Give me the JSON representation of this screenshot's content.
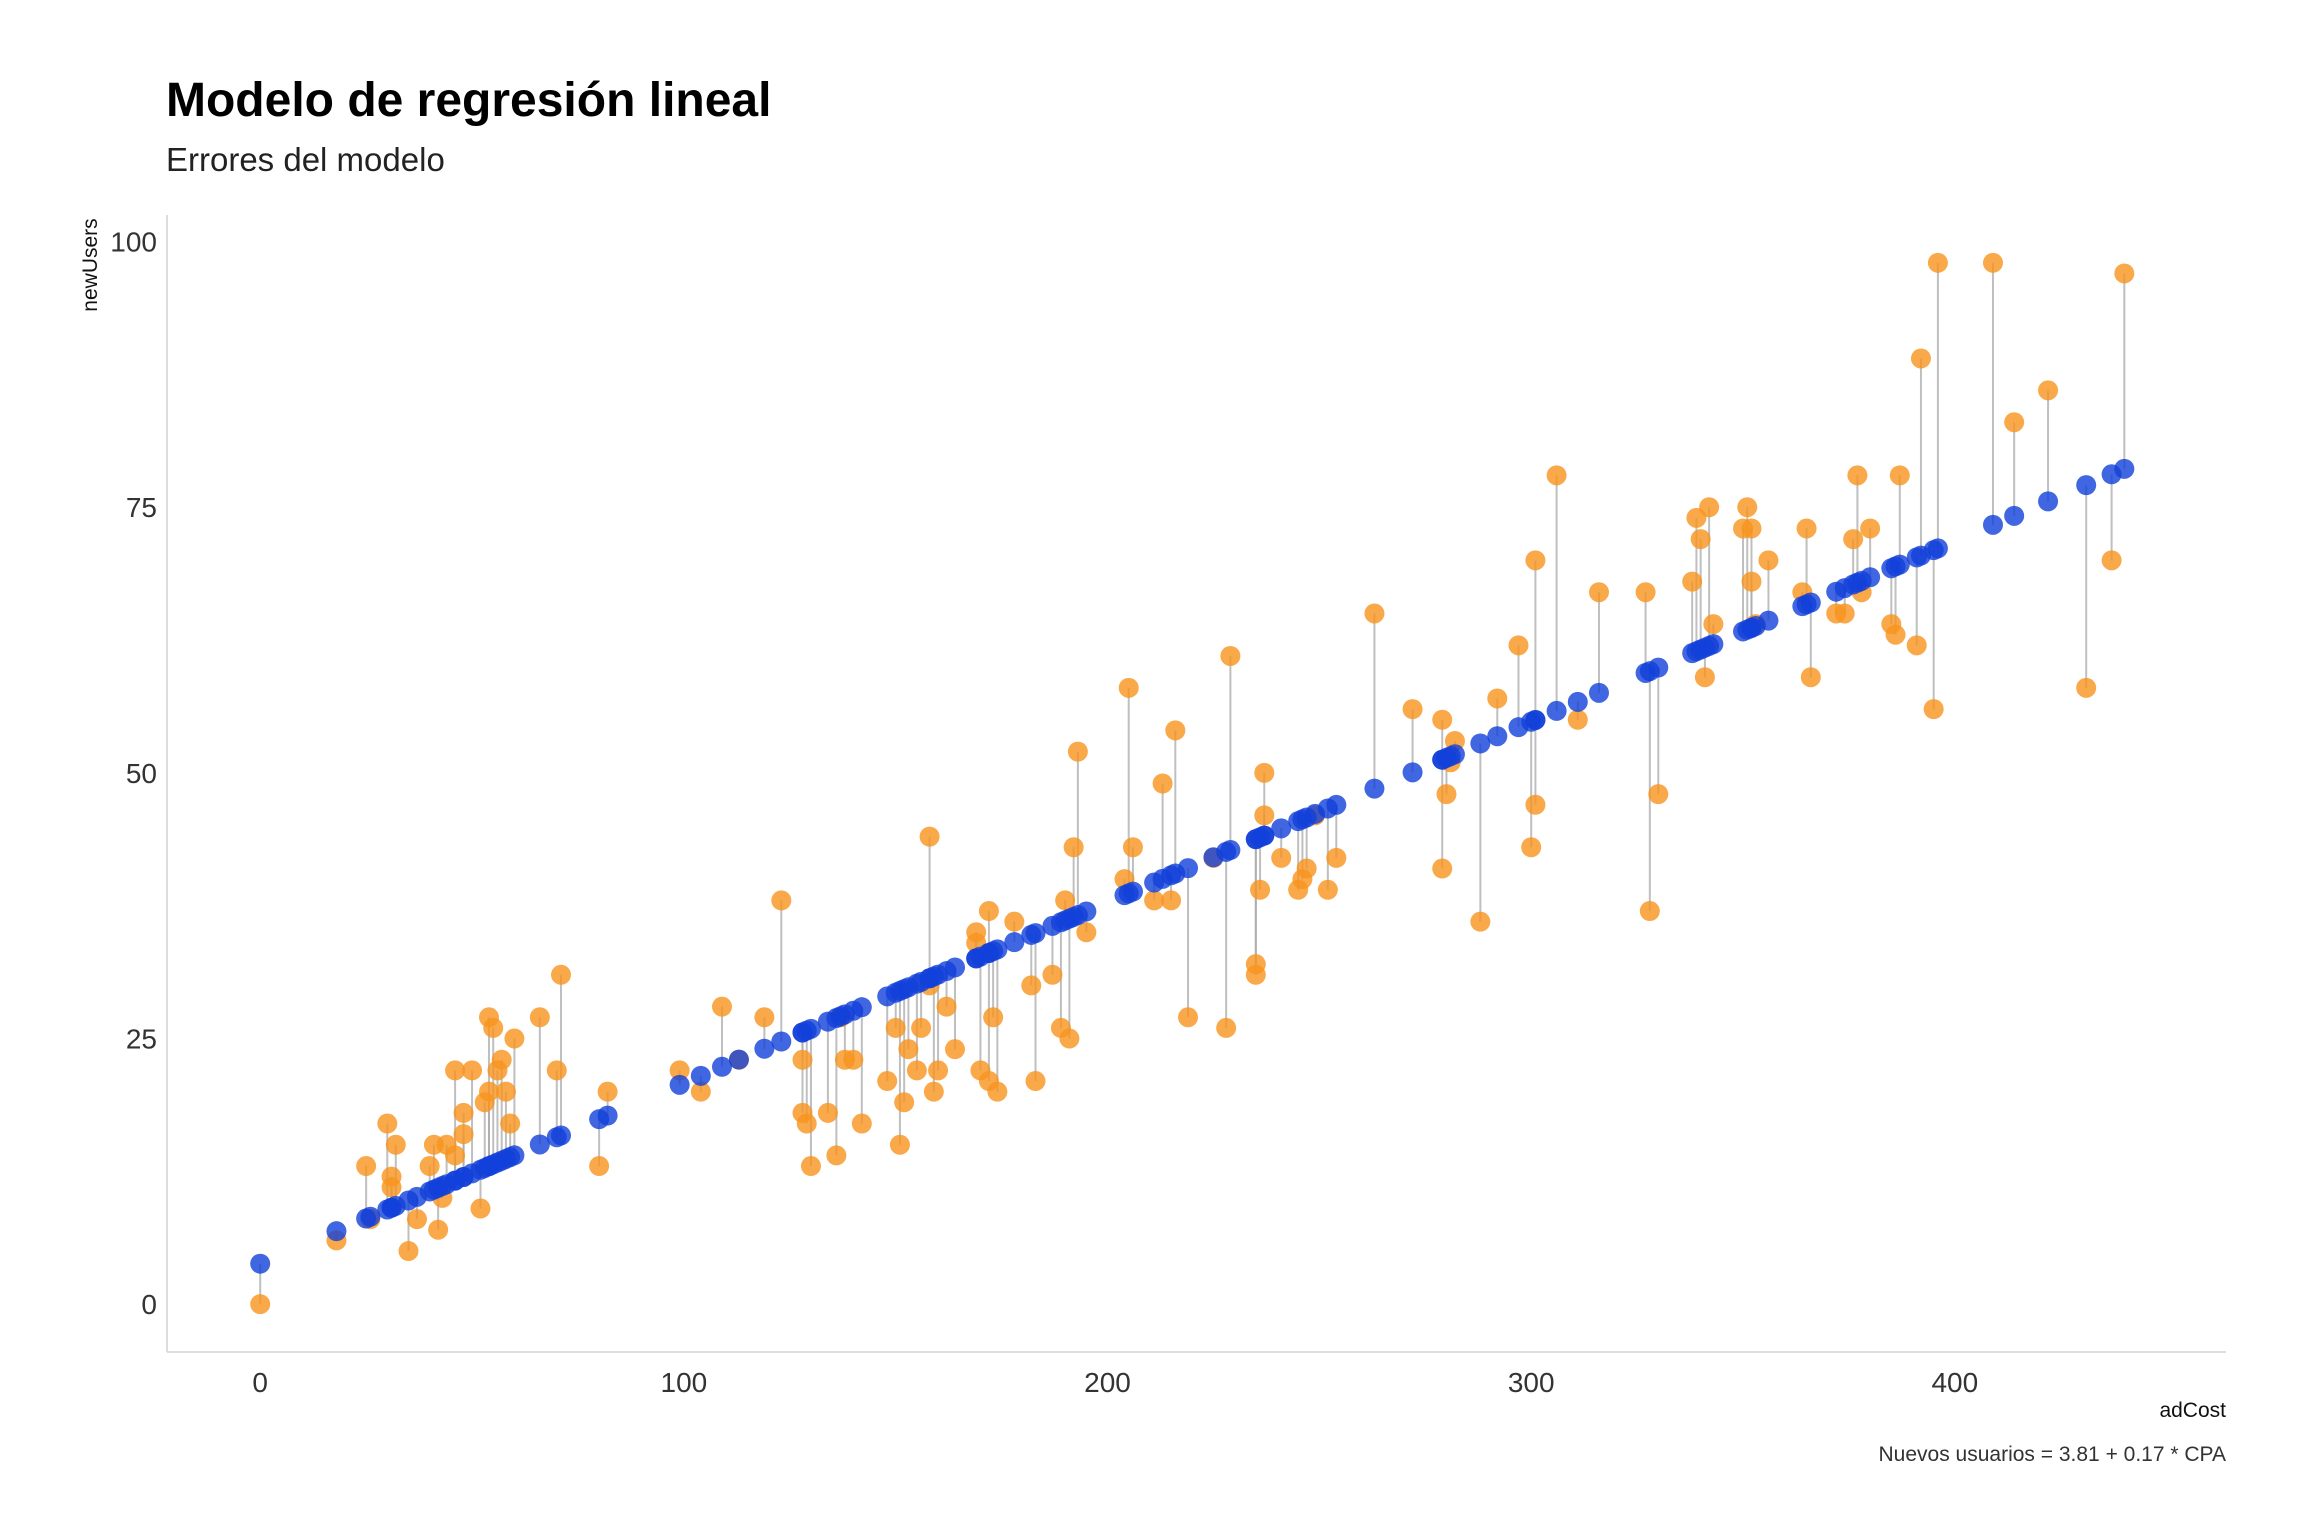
{
  "chart_data": {
    "type": "scatter",
    "title": "Modelo de regresión lineal",
    "subtitle": "Errores del modelo",
    "xlabel": "adCost",
    "ylabel": "newUsers",
    "caption": "Nuevos usuarios = 3.81 + 0.17 * CPA",
    "xlim": [
      -22,
      464
    ],
    "ylim": [
      -4.5,
      102.5
    ],
    "x_ticks": [
      0,
      100,
      200,
      300,
      400
    ],
    "y_ticks": [
      0,
      25,
      50,
      75,
      100
    ],
    "grid": false,
    "model": {
      "intercept": 3.81,
      "slope": 0.17
    },
    "colors": {
      "observed": "#f7941d",
      "fitted": "#1240d9",
      "residual": "#aaaaaa"
    },
    "series": [
      {
        "role": "observed",
        "x": [
          0,
          18,
          25,
          26,
          30,
          31,
          31,
          32,
          35,
          37,
          40,
          41,
          42,
          43,
          44,
          46,
          46,
          48,
          48,
          50,
          52,
          53,
          54,
          54,
          55,
          56,
          57,
          58,
          59,
          60,
          66,
          70,
          71,
          80,
          82,
          99,
          104,
          109,
          113,
          119,
          123,
          128,
          128,
          129,
          130,
          134,
          136,
          137,
          138,
          140,
          142,
          148,
          150,
          151,
          152,
          153,
          155,
          156,
          158,
          158,
          159,
          160,
          162,
          164,
          169,
          169,
          170,
          172,
          172,
          173,
          174,
          178,
          182,
          183,
          187,
          189,
          190,
          191,
          192,
          193,
          195,
          204,
          205,
          206,
          211,
          213,
          215,
          216,
          219,
          225,
          228,
          229,
          235,
          235,
          236,
          237,
          237,
          241,
          245,
          246,
          247,
          249,
          252,
          254,
          263,
          272,
          279,
          279,
          280,
          281,
          282,
          288,
          292,
          297,
          300,
          301,
          301,
          306,
          311,
          316,
          327,
          328,
          330,
          338,
          339,
          340,
          341,
          342,
          343,
          350,
          351,
          352,
          352,
          353,
          356,
          364,
          365,
          366,
          372,
          374,
          376,
          377,
          378,
          380,
          385,
          386,
          387,
          391,
          392,
          395,
          396,
          409,
          414,
          422,
          431,
          437,
          440
        ],
        "y": [
          0,
          6,
          13,
          8,
          17,
          12,
          11,
          15,
          5,
          8,
          13,
          15,
          7,
          10,
          15,
          14,
          22,
          18,
          16,
          22,
          9,
          19,
          20,
          27,
          26,
          22,
          23,
          20,
          17,
          25,
          27,
          22,
          31,
          13,
          20,
          22,
          20,
          28,
          23,
          27,
          38,
          23,
          18,
          17,
          13,
          18,
          14,
          27,
          23,
          23,
          17,
          21,
          26,
          15,
          19,
          24,
          22,
          26,
          44,
          30,
          20,
          22,
          28,
          24,
          35,
          34,
          22,
          21,
          37,
          27,
          20,
          36,
          30,
          21,
          31,
          26,
          38,
          25,
          43,
          52,
          35,
          40,
          58,
          43,
          38,
          49,
          38,
          54,
          27,
          42,
          26,
          61,
          31,
          32,
          39,
          50,
          46,
          42,
          39,
          40,
          41,
          46,
          39,
          42,
          65,
          56,
          41,
          55,
          48,
          51,
          53,
          36,
          57,
          62,
          43,
          70,
          47,
          78,
          55,
          67,
          67,
          37,
          48,
          68,
          74,
          72,
          59,
          75,
          64,
          73,
          75,
          68,
          73,
          64,
          70,
          67,
          73,
          59,
          65,
          65,
          72,
          78,
          67,
          73,
          64,
          63,
          78,
          62,
          89,
          56,
          98,
          98,
          83,
          86,
          58,
          70,
          97
        ]
      },
      {
        "role": "fitted",
        "x": [
          0,
          18,
          25,
          26,
          30,
          31,
          31,
          32,
          35,
          37,
          40,
          41,
          42,
          43,
          44,
          46,
          46,
          48,
          48,
          50,
          52,
          53,
          54,
          54,
          55,
          56,
          57,
          58,
          59,
          60,
          66,
          70,
          71,
          80,
          82,
          99,
          104,
          109,
          113,
          119,
          123,
          128,
          128,
          129,
          130,
          134,
          136,
          137,
          138,
          140,
          142,
          148,
          150,
          151,
          152,
          153,
          155,
          156,
          158,
          158,
          159,
          160,
          162,
          164,
          169,
          169,
          170,
          172,
          172,
          173,
          174,
          178,
          182,
          183,
          187,
          189,
          190,
          191,
          192,
          193,
          195,
          204,
          205,
          206,
          211,
          213,
          215,
          216,
          219,
          225,
          228,
          229,
          235,
          235,
          236,
          237,
          237,
          241,
          245,
          246,
          247,
          249,
          252,
          254,
          263,
          272,
          279,
          279,
          280,
          281,
          282,
          288,
          292,
          297,
          300,
          301,
          301,
          306,
          311,
          316,
          327,
          328,
          330,
          338,
          339,
          340,
          341,
          342,
          343,
          350,
          351,
          352,
          352,
          353,
          356,
          364,
          365,
          366,
          372,
          374,
          376,
          377,
          378,
          380,
          385,
          386,
          387,
          391,
          392,
          395,
          396,
          409,
          414,
          422,
          431,
          437,
          440
        ],
        "y": [
          3.81,
          6.87,
          8.06,
          8.23,
          8.91,
          9.08,
          9.08,
          9.25,
          9.76,
          10.1,
          10.61,
          10.78,
          10.95,
          11.12,
          11.29,
          11.63,
          11.63,
          11.97,
          11.97,
          12.31,
          12.65,
          12.82,
          12.99,
          12.99,
          13.16,
          13.33,
          13.5,
          13.67,
          13.84,
          14.01,
          15.03,
          15.71,
          15.88,
          17.41,
          17.75,
          20.64,
          21.49,
          22.34,
          23.02,
          24.04,
          24.72,
          25.57,
          25.57,
          25.74,
          25.91,
          26.59,
          26.93,
          27.1,
          27.27,
          27.61,
          27.95,
          28.97,
          29.31,
          29.48,
          29.65,
          29.82,
          30.16,
          30.33,
          30.67,
          30.67,
          30.84,
          31.01,
          31.35,
          31.69,
          32.54,
          32.54,
          32.71,
          33.05,
          33.05,
          33.22,
          33.39,
          34.07,
          34.75,
          34.92,
          35.6,
          35.94,
          36.11,
          36.28,
          36.45,
          36.62,
          36.96,
          38.49,
          38.66,
          38.83,
          39.68,
          40.02,
          40.36,
          40.53,
          41.04,
          42.06,
          42.57,
          42.74,
          43.76,
          43.76,
          43.93,
          44.1,
          44.1,
          44.78,
          45.46,
          45.63,
          45.8,
          46.14,
          46.65,
          46.99,
          48.52,
          50.05,
          51.24,
          51.24,
          51.41,
          51.58,
          51.75,
          52.77,
          53.45,
          54.3,
          54.81,
          54.98,
          54.98,
          55.83,
          56.68,
          57.53,
          59.4,
          59.57,
          59.91,
          61.27,
          61.44,
          61.61,
          61.78,
          61.95,
          62.12,
          63.31,
          63.48,
          63.65,
          63.65,
          63.82,
          64.33,
          65.69,
          65.86,
          66.03,
          67.05,
          67.39,
          67.73,
          67.9,
          68.07,
          68.41,
          69.26,
          69.43,
          69.6,
          70.28,
          70.45,
          70.96,
          71.13,
          73.34,
          74.19,
          75.55,
          77.08,
          78.1,
          78.61
        ]
      }
    ]
  }
}
